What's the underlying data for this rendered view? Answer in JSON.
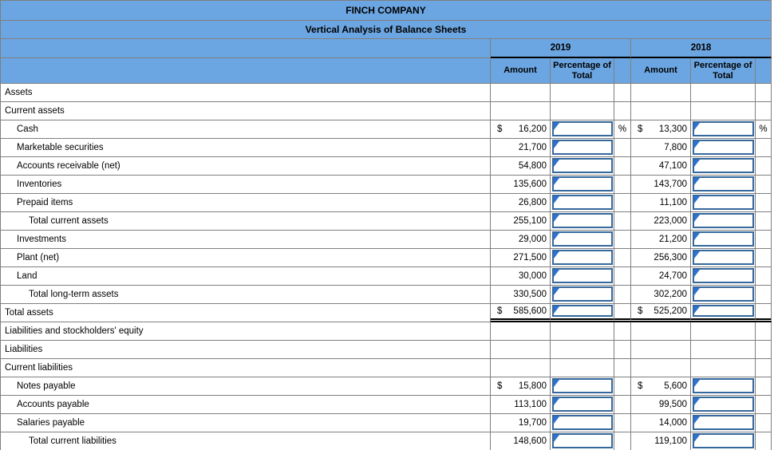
{
  "title": "FINCH COMPANY",
  "subtitle": "Vertical Analysis of Balance Sheets",
  "columns": {
    "year_2019": "2019",
    "year_2018": "2018",
    "amount": "Amount",
    "pct": "Percentage of Total"
  },
  "colors": {
    "header_fill": "#6CA6E2",
    "grid_line": "#7F7F7F",
    "input_border": "#35689D",
    "answer_flag": "#2C72D2"
  },
  "icons": {
    "answer_flag": "blue corner triangle marker on each fill-in cell"
  },
  "table": {
    "rows": [
      {
        "label": "Assets",
        "indent": 0,
        "double_underline": false,
        "y2019": {
          "dollar": "",
          "amount": "",
          "input_box": false,
          "suffix": ""
        },
        "y2018": {
          "dollar": "",
          "amount": "",
          "input_box": false,
          "suffix": ""
        }
      },
      {
        "label": "Current assets",
        "indent": 0,
        "double_underline": false,
        "y2019": {
          "dollar": "",
          "amount": "",
          "input_box": false,
          "suffix": ""
        },
        "y2018": {
          "dollar": "",
          "amount": "",
          "input_box": false,
          "suffix": ""
        }
      },
      {
        "label": "Cash",
        "indent": 1,
        "double_underline": false,
        "y2019": {
          "dollar": "$",
          "amount": "16,200",
          "input_box": true,
          "suffix": "%"
        },
        "y2018": {
          "dollar": "$",
          "amount": "13,300",
          "input_box": true,
          "suffix": "%"
        }
      },
      {
        "label": "Marketable securities",
        "indent": 1,
        "double_underline": false,
        "y2019": {
          "dollar": "",
          "amount": "21,700",
          "input_box": true,
          "suffix": ""
        },
        "y2018": {
          "dollar": "",
          "amount": "7,800",
          "input_box": true,
          "suffix": ""
        }
      },
      {
        "label": "Accounts receivable (net)",
        "indent": 1,
        "double_underline": false,
        "y2019": {
          "dollar": "",
          "amount": "54,800",
          "input_box": true,
          "suffix": ""
        },
        "y2018": {
          "dollar": "",
          "amount": "47,100",
          "input_box": true,
          "suffix": ""
        }
      },
      {
        "label": "Inventories",
        "indent": 1,
        "double_underline": false,
        "y2019": {
          "dollar": "",
          "amount": "135,600",
          "input_box": true,
          "suffix": ""
        },
        "y2018": {
          "dollar": "",
          "amount": "143,700",
          "input_box": true,
          "suffix": ""
        }
      },
      {
        "label": "Prepaid items",
        "indent": 1,
        "double_underline": false,
        "y2019": {
          "dollar": "",
          "amount": "26,800",
          "input_box": true,
          "suffix": ""
        },
        "y2018": {
          "dollar": "",
          "amount": "11,100",
          "input_box": true,
          "suffix": ""
        }
      },
      {
        "label": "Total current assets",
        "indent": 2,
        "double_underline": false,
        "y2019": {
          "dollar": "",
          "amount": "255,100",
          "input_box": true,
          "suffix": ""
        },
        "y2018": {
          "dollar": "",
          "amount": "223,000",
          "input_box": true,
          "suffix": ""
        }
      },
      {
        "label": "Investments",
        "indent": 1,
        "double_underline": false,
        "y2019": {
          "dollar": "",
          "amount": "29,000",
          "input_box": true,
          "suffix": ""
        },
        "y2018": {
          "dollar": "",
          "amount": "21,200",
          "input_box": true,
          "suffix": ""
        }
      },
      {
        "label": "Plant (net)",
        "indent": 1,
        "double_underline": false,
        "y2019": {
          "dollar": "",
          "amount": "271,500",
          "input_box": true,
          "suffix": ""
        },
        "y2018": {
          "dollar": "",
          "amount": "256,300",
          "input_box": true,
          "suffix": ""
        }
      },
      {
        "label": "Land",
        "indent": 1,
        "double_underline": false,
        "y2019": {
          "dollar": "",
          "amount": "30,000",
          "input_box": true,
          "suffix": ""
        },
        "y2018": {
          "dollar": "",
          "amount": "24,700",
          "input_box": true,
          "suffix": ""
        }
      },
      {
        "label": "Total long-term assets",
        "indent": 2,
        "double_underline": false,
        "y2019": {
          "dollar": "",
          "amount": "330,500",
          "input_box": true,
          "suffix": ""
        },
        "y2018": {
          "dollar": "",
          "amount": "302,200",
          "input_box": true,
          "suffix": ""
        }
      },
      {
        "label": "Total assets",
        "indent": 0,
        "double_underline": true,
        "y2019": {
          "dollar": "$",
          "amount": "585,600",
          "input_box": true,
          "suffix": ""
        },
        "y2018": {
          "dollar": "$",
          "amount": "525,200",
          "input_box": true,
          "suffix": ""
        }
      },
      {
        "label": "Liabilities and stockholders' equity",
        "indent": 0,
        "double_underline": false,
        "y2019": {
          "dollar": "",
          "amount": "",
          "input_box": false,
          "suffix": ""
        },
        "y2018": {
          "dollar": "",
          "amount": "",
          "input_box": false,
          "suffix": ""
        }
      },
      {
        "label": "Liabilities",
        "indent": 0,
        "double_underline": false,
        "y2019": {
          "dollar": "",
          "amount": "",
          "input_box": false,
          "suffix": ""
        },
        "y2018": {
          "dollar": "",
          "amount": "",
          "input_box": false,
          "suffix": ""
        }
      },
      {
        "label": "Current liabilities",
        "indent": 0,
        "double_underline": false,
        "y2019": {
          "dollar": "",
          "amount": "",
          "input_box": false,
          "suffix": ""
        },
        "y2018": {
          "dollar": "",
          "amount": "",
          "input_box": false,
          "suffix": ""
        }
      },
      {
        "label": "Notes payable",
        "indent": 1,
        "double_underline": false,
        "y2019": {
          "dollar": "$",
          "amount": "15,800",
          "input_box": true,
          "suffix": ""
        },
        "y2018": {
          "dollar": "$",
          "amount": "5,600",
          "input_box": true,
          "suffix": ""
        }
      },
      {
        "label": "Accounts payable",
        "indent": 1,
        "double_underline": false,
        "y2019": {
          "dollar": "",
          "amount": "113,100",
          "input_box": true,
          "suffix": ""
        },
        "y2018": {
          "dollar": "",
          "amount": "99,500",
          "input_box": true,
          "suffix": ""
        }
      },
      {
        "label": "Salaries payable",
        "indent": 1,
        "double_underline": false,
        "y2019": {
          "dollar": "",
          "amount": "19,700",
          "input_box": true,
          "suffix": ""
        },
        "y2018": {
          "dollar": "",
          "amount": "14,000",
          "input_box": true,
          "suffix": ""
        }
      },
      {
        "label": "Total current liabilities",
        "indent": 2,
        "double_underline": false,
        "y2019": {
          "dollar": "",
          "amount": "148,600",
          "input_box": true,
          "suffix": ""
        },
        "y2018": {
          "dollar": "",
          "amount": "119,100",
          "input_box": true,
          "suffix": ""
        }
      }
    ]
  }
}
